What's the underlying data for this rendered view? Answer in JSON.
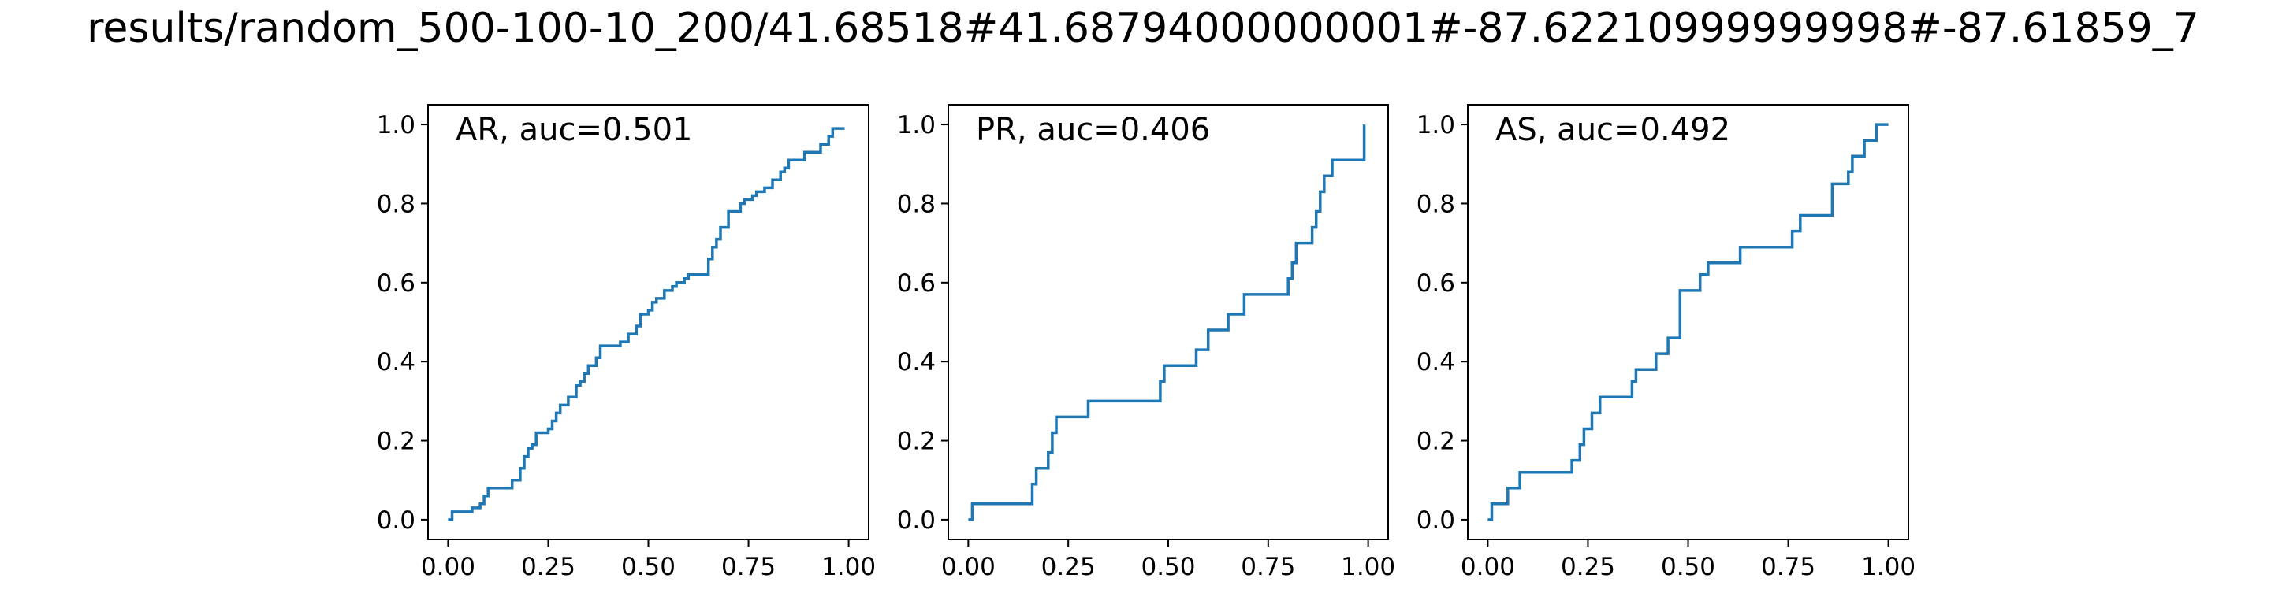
{
  "figure": {
    "title": "results/random_500-100-10_200/41.68518#41.68794000000001#-87.62210999999998#-87.61859_7"
  },
  "style": {
    "line_color": "#1f77b4",
    "axis_color": "#000000",
    "background": "#ffffff"
  },
  "chart_data": [
    {
      "type": "line",
      "title": "AR, auc=0.501",
      "xlabel": "",
      "ylabel": "",
      "xlim": [
        -0.05,
        1.05
      ],
      "ylim": [
        -0.05,
        1.05
      ],
      "xticks": [
        "0.00",
        "0.25",
        "0.50",
        "0.75",
        "1.00"
      ],
      "yticks": [
        "0.0",
        "0.2",
        "0.4",
        "0.6",
        "0.8",
        "1.0"
      ],
      "grid": false,
      "series": [
        {
          "x": [
            0,
            0.01,
            0.01,
            0.06,
            0.06,
            0.08,
            0.08,
            0.09,
            0.09,
            0.1,
            0.1,
            0.16,
            0.16,
            0.18,
            0.18,
            0.19,
            0.19,
            0.2,
            0.2,
            0.21,
            0.21,
            0.22,
            0.22,
            0.25,
            0.25,
            0.26,
            0.26,
            0.27,
            0.27,
            0.28,
            0.28,
            0.3,
            0.3,
            0.32,
            0.32,
            0.33,
            0.33,
            0.34,
            0.34,
            0.35,
            0.35,
            0.37,
            0.37,
            0.38,
            0.38,
            0.43,
            0.43,
            0.45,
            0.45,
            0.47,
            0.47,
            0.48,
            0.48,
            0.5,
            0.5,
            0.51,
            0.51,
            0.52,
            0.52,
            0.54,
            0.54,
            0.56,
            0.56,
            0.57,
            0.57,
            0.59,
            0.59,
            0.6,
            0.6,
            0.65,
            0.65,
            0.66,
            0.66,
            0.67,
            0.67,
            0.68,
            0.68,
            0.7,
            0.7,
            0.73,
            0.73,
            0.74,
            0.74,
            0.76,
            0.76,
            0.77,
            0.77,
            0.79,
            0.79,
            0.81,
            0.81,
            0.83,
            0.83,
            0.84,
            0.84,
            0.85,
            0.85,
            0.89,
            0.89,
            0.93,
            0.93,
            0.95,
            0.95,
            0.96,
            0.96,
            0.99
          ],
          "y": [
            0,
            0,
            0.02,
            0.02,
            0.03,
            0.03,
            0.04,
            0.04,
            0.06,
            0.06,
            0.08,
            0.08,
            0.1,
            0.1,
            0.13,
            0.13,
            0.16,
            0.16,
            0.18,
            0.18,
            0.19,
            0.19,
            0.22,
            0.22,
            0.23,
            0.23,
            0.25,
            0.25,
            0.27,
            0.27,
            0.29,
            0.29,
            0.31,
            0.31,
            0.34,
            0.34,
            0.35,
            0.35,
            0.37,
            0.37,
            0.39,
            0.39,
            0.41,
            0.41,
            0.44,
            0.44,
            0.45,
            0.45,
            0.47,
            0.47,
            0.49,
            0.49,
            0.52,
            0.52,
            0.53,
            0.53,
            0.55,
            0.55,
            0.56,
            0.56,
            0.58,
            0.58,
            0.59,
            0.59,
            0.6,
            0.6,
            0.61,
            0.61,
            0.62,
            0.62,
            0.66,
            0.66,
            0.69,
            0.69,
            0.71,
            0.71,
            0.74,
            0.74,
            0.78,
            0.78,
            0.8,
            0.8,
            0.81,
            0.81,
            0.82,
            0.82,
            0.83,
            0.83,
            0.84,
            0.84,
            0.86,
            0.86,
            0.88,
            0.88,
            0.89,
            0.89,
            0.91,
            0.91,
            0.93,
            0.93,
            0.95,
            0.95,
            0.97,
            0.97,
            0.99,
            0.99
          ]
        }
      ]
    },
    {
      "type": "line",
      "title": "PR, auc=0.406",
      "xlabel": "",
      "ylabel": "",
      "xlim": [
        -0.05,
        1.05
      ],
      "ylim": [
        -0.05,
        1.05
      ],
      "xticks": [
        "0.00",
        "0.25",
        "0.50",
        "0.75",
        "1.00"
      ],
      "yticks": [
        "0.0",
        "0.2",
        "0.4",
        "0.6",
        "0.8",
        "1.0"
      ],
      "grid": false,
      "series": [
        {
          "x": [
            0,
            0.01,
            0.01,
            0.16,
            0.16,
            0.17,
            0.17,
            0.2,
            0.2,
            0.21,
            0.21,
            0.22,
            0.22,
            0.3,
            0.3,
            0.48,
            0.48,
            0.49,
            0.49,
            0.57,
            0.57,
            0.6,
            0.6,
            0.65,
            0.65,
            0.69,
            0.69,
            0.8,
            0.8,
            0.81,
            0.81,
            0.82,
            0.82,
            0.86,
            0.86,
            0.87,
            0.87,
            0.88,
            0.88,
            0.89,
            0.89,
            0.91,
            0.91,
            0.99,
            0.99
          ],
          "y": [
            0,
            0,
            0.04,
            0.04,
            0.09,
            0.09,
            0.13,
            0.13,
            0.17,
            0.17,
            0.22,
            0.22,
            0.26,
            0.26,
            0.3,
            0.3,
            0.35,
            0.35,
            0.39,
            0.39,
            0.43,
            0.43,
            0.48,
            0.48,
            0.52,
            0.52,
            0.57,
            0.57,
            0.61,
            0.61,
            0.65,
            0.65,
            0.7,
            0.7,
            0.74,
            0.74,
            0.78,
            0.78,
            0.83,
            0.83,
            0.87,
            0.87,
            0.91,
            0.91,
            1.0
          ]
        }
      ]
    },
    {
      "type": "line",
      "title": "AS, auc=0.492",
      "xlabel": "",
      "ylabel": "",
      "xlim": [
        -0.05,
        1.05
      ],
      "ylim": [
        -0.05,
        1.05
      ],
      "xticks": [
        "0.00",
        "0.25",
        "0.50",
        "0.75",
        "1.00"
      ],
      "yticks": [
        "0.0",
        "0.2",
        "0.4",
        "0.6",
        "0.8",
        "1.0"
      ],
      "grid": false,
      "series": [
        {
          "x": [
            0,
            0.01,
            0.01,
            0.05,
            0.05,
            0.08,
            0.08,
            0.21,
            0.21,
            0.23,
            0.23,
            0.24,
            0.24,
            0.26,
            0.26,
            0.28,
            0.28,
            0.36,
            0.36,
            0.37,
            0.37,
            0.42,
            0.42,
            0.45,
            0.45,
            0.48,
            0.48,
            0.53,
            0.53,
            0.55,
            0.55,
            0.63,
            0.63,
            0.76,
            0.76,
            0.78,
            0.78,
            0.86,
            0.86,
            0.9,
            0.9,
            0.91,
            0.91,
            0.94,
            0.94,
            0.97,
            0.97,
            1.0
          ],
          "y": [
            0,
            0,
            0.04,
            0.04,
            0.08,
            0.08,
            0.12,
            0.12,
            0.15,
            0.15,
            0.19,
            0.19,
            0.23,
            0.23,
            0.27,
            0.27,
            0.31,
            0.31,
            0.35,
            0.35,
            0.38,
            0.38,
            0.42,
            0.42,
            0.46,
            0.46,
            0.58,
            0.58,
            0.62,
            0.62,
            0.65,
            0.65,
            0.69,
            0.69,
            0.73,
            0.73,
            0.77,
            0.77,
            0.85,
            0.85,
            0.88,
            0.88,
            0.92,
            0.92,
            0.96,
            0.96,
            1.0,
            1.0
          ]
        }
      ]
    }
  ]
}
